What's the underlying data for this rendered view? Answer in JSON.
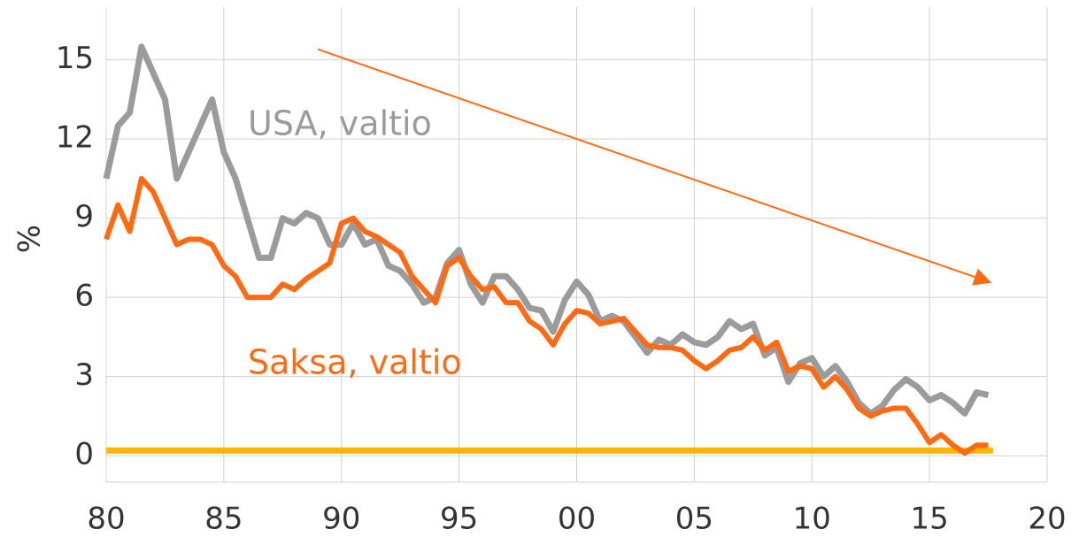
{
  "chart_data": {
    "type": "line",
    "y_label": "%",
    "x": [
      1980,
      1980.5,
      1981,
      1981.5,
      1982,
      1982.5,
      1983,
      1983.5,
      1984,
      1984.5,
      1985,
      1985.5,
      1986,
      1986.5,
      1987,
      1987.5,
      1988,
      1988.5,
      1989,
      1989.5,
      1990,
      1990.5,
      1991,
      1991.5,
      1992,
      1992.5,
      1993,
      1993.5,
      1994,
      1994.5,
      1995,
      1995.5,
      1996,
      1996.5,
      1997,
      1997.5,
      1998,
      1998.5,
      1999,
      1999.5,
      2000,
      2000.5,
      2001,
      2001.5,
      2002,
      2002.5,
      2003,
      2003.5,
      2004,
      2004.5,
      2005,
      2005.5,
      2006,
      2006.5,
      2007,
      2007.5,
      2008,
      2008.5,
      2009,
      2009.5,
      2010,
      2010.5,
      2011,
      2011.5,
      2012,
      2012.5,
      2013,
      2013.5,
      2014,
      2014.5,
      2015,
      2015.5,
      2016,
      2016.5,
      2017,
      2017.5
    ],
    "series": [
      {
        "name": "USA, valtio",
        "color": "#9b9b9b",
        "values": [
          10.5,
          12.5,
          13,
          15.5,
          14.5,
          13.5,
          10.5,
          11.5,
          12.5,
          13.5,
          11.5,
          10.5,
          9,
          7.5,
          7.5,
          9,
          8.8,
          9.2,
          9,
          8,
          8,
          8.8,
          8,
          8.2,
          7.2,
          7,
          6.5,
          5.8,
          6,
          7.3,
          7.8,
          6.5,
          5.8,
          6.8,
          6.8,
          6.3,
          5.6,
          5.5,
          4.7,
          5.9,
          6.6,
          6.1,
          5.1,
          5.3,
          5.1,
          4.5,
          3.9,
          4.4,
          4.2,
          4.6,
          4.3,
          4.2,
          4.5,
          5.1,
          4.8,
          5.0,
          3.8,
          4.1,
          2.8,
          3.5,
          3.7,
          3.0,
          3.4,
          2.8,
          2.0,
          1.6,
          1.9,
          2.5,
          2.9,
          2.6,
          2.1,
          2.3,
          2.0,
          1.6,
          2.4,
          2.3
        ]
      },
      {
        "name": "Saksa, valtio",
        "color": "#ff6a13",
        "values": [
          8.2,
          9.5,
          8.5,
          10.5,
          10,
          9,
          8,
          8.2,
          8.2,
          8,
          7.2,
          6.8,
          6,
          6,
          6,
          6.5,
          6.3,
          6.7,
          7,
          7.3,
          8.8,
          9,
          8.5,
          8.3,
          8,
          7.7,
          6.8,
          6.3,
          5.8,
          7.2,
          7.5,
          6.8,
          6.3,
          6.4,
          5.8,
          5.8,
          5.1,
          4.8,
          4.2,
          5,
          5.5,
          5.4,
          5,
          5.1,
          5.2,
          4.7,
          4.2,
          4.1,
          4.1,
          4.0,
          3.6,
          3.3,
          3.6,
          4.0,
          4.1,
          4.5,
          4.0,
          4.3,
          3.2,
          3.4,
          3.3,
          2.6,
          3.0,
          2.5,
          1.8,
          1.5,
          1.7,
          1.8,
          1.8,
          1.2,
          0.5,
          0.8,
          0.4,
          0.1,
          0.4,
          0.4
        ]
      }
    ],
    "reference_line": {
      "color": "#ffb400",
      "x": [
        1980,
        2017.7
      ],
      "values": [
        0.2,
        0.2
      ]
    },
    "arrow": {
      "color": "#ff6a13",
      "x": [
        1989,
        2017.5
      ],
      "y": [
        15.4,
        6.6
      ]
    },
    "xlim": [
      1980,
      2020
    ],
    "ylim": [
      -1,
      17
    ],
    "xticks": [
      {
        "value": 1980,
        "label": "80"
      },
      {
        "value": 1985,
        "label": "85"
      },
      {
        "value": 1990,
        "label": "90"
      },
      {
        "value": 1995,
        "label": "95"
      },
      {
        "value": 2000,
        "label": "00"
      },
      {
        "value": 2005,
        "label": "05"
      },
      {
        "value": 2010,
        "label": "10"
      },
      {
        "value": 2015,
        "label": "15"
      },
      {
        "value": 2020,
        "label": "20"
      }
    ],
    "yticks": [
      0,
      3,
      6,
      9,
      12,
      15
    ],
    "grid": true
  }
}
